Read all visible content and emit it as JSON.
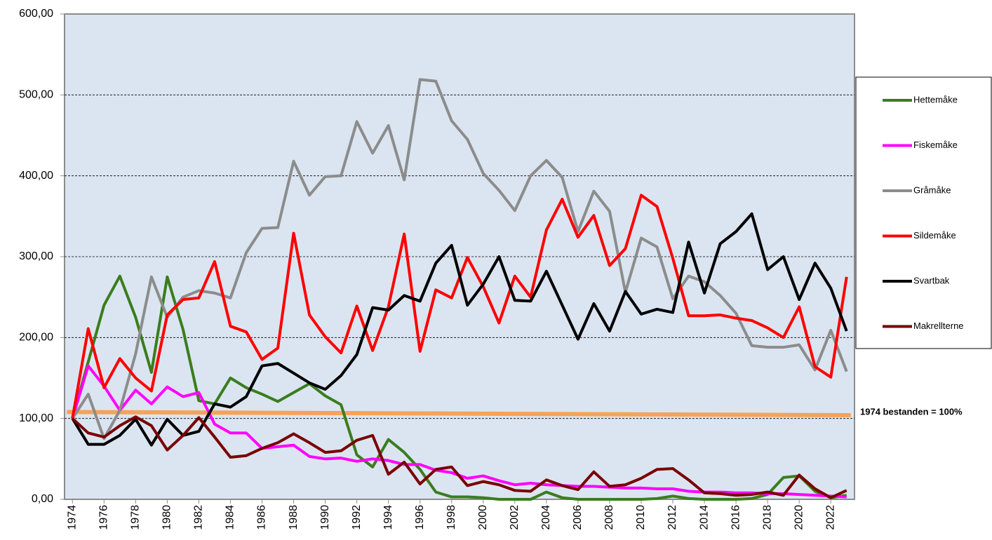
{
  "chart_data": {
    "type": "line",
    "x": [
      1974,
      1975,
      1976,
      1977,
      1978,
      1979,
      1980,
      1981,
      1982,
      1983,
      1984,
      1985,
      1986,
      1987,
      1988,
      1989,
      1990,
      1991,
      1992,
      1993,
      1994,
      1995,
      1996,
      1997,
      1998,
      1999,
      2000,
      2001,
      2002,
      2003,
      2004,
      2005,
      2006,
      2007,
      2008,
      2009,
      2010,
      2011,
      2012,
      2013,
      2014,
      2015,
      2016,
      2017,
      2018,
      2019,
      2020,
      2021,
      2022,
      2023
    ],
    "xlim": [
      1973.5,
      2023.5
    ],
    "xticks": [
      1974,
      1976,
      1978,
      1980,
      1982,
      1984,
      1986,
      1988,
      1990,
      1992,
      1994,
      1996,
      1998,
      2000,
      2002,
      2004,
      2006,
      2008,
      2010,
      2012,
      2014,
      2016,
      2018,
      2020,
      2022
    ],
    "ylim": [
      0,
      600
    ],
    "yticks": [
      {
        "value": 0,
        "label": "0,00"
      },
      {
        "value": 100,
        "label": "100,00"
      },
      {
        "value": 200,
        "label": "200,00"
      },
      {
        "value": 300,
        "label": "300,00"
      },
      {
        "value": 400,
        "label": "400,00"
      },
      {
        "value": 500,
        "label": "500,00"
      },
      {
        "value": 600,
        "label": "600,00"
      }
    ],
    "grid": true,
    "legend": "right",
    "series": [
      {
        "name": "Hettemåke",
        "color": "#3a7d1e",
        "values": [
          100,
          170,
          240,
          276,
          225,
          157,
          275,
          210,
          122,
          118,
          150,
          138,
          130,
          121,
          132,
          143,
          128,
          117,
          55,
          40,
          74,
          58,
          37,
          9,
          3,
          3,
          2,
          0,
          0,
          0,
          9,
          2,
          0,
          0,
          0,
          0,
          0,
          1,
          4,
          1,
          0,
          0,
          0,
          1,
          6,
          27,
          29,
          10,
          2,
          5
        ]
      },
      {
        "name": "Fiskemåke",
        "color": "#ff00ff",
        "values": [
          100,
          165,
          140,
          110,
          135,
          118,
          139,
          127,
          132,
          93,
          82,
          82,
          63,
          65,
          67,
          53,
          50,
          51,
          47,
          50,
          48,
          43,
          43,
          36,
          33,
          26,
          29,
          23,
          18,
          20,
          18,
          17,
          16,
          16,
          15,
          14,
          14,
          13,
          13,
          10,
          9,
          9,
          8,
          8,
          7,
          7,
          6,
          5,
          4,
          3
        ]
      },
      {
        "name": "Gråmåke",
        "color": "#8c8c8c",
        "values": [
          100,
          130,
          75,
          110,
          180,
          275,
          225,
          250,
          258,
          255,
          249,
          305,
          335,
          336,
          418,
          376,
          399,
          400,
          467,
          428,
          462,
          395,
          519,
          517,
          468,
          445,
          403,
          382,
          357,
          400,
          419,
          398,
          331,
          381,
          356,
          256,
          323,
          312,
          248,
          276,
          269,
          252,
          230,
          190,
          188,
          188,
          191,
          160,
          209,
          158
        ]
      },
      {
        "name": "Sildemåke",
        "color": "#ff0000",
        "values": [
          100,
          211,
          138,
          174,
          150,
          134,
          228,
          247,
          249,
          294,
          214,
          207,
          173,
          187,
          329,
          228,
          201,
          181,
          239,
          184,
          238,
          328,
          183,
          259,
          249,
          299,
          263,
          218,
          276,
          250,
          333,
          371,
          324,
          351,
          289,
          310,
          376,
          362,
          298,
          227,
          227,
          228,
          224,
          221,
          212,
          200,
          238,
          164,
          151,
          275
        ]
      },
      {
        "name": "Svartbak",
        "color": "#000000",
        "values": [
          100,
          68,
          68,
          79,
          99,
          67,
          99,
          79,
          84,
          118,
          114,
          127,
          165,
          168,
          156,
          144,
          136,
          153,
          179,
          237,
          234,
          252,
          245,
          292,
          314,
          240,
          266,
          300,
          246,
          245,
          282,
          240,
          198,
          242,
          208,
          257,
          229,
          235,
          231,
          318,
          255,
          316,
          331,
          353,
          284,
          300,
          247,
          292,
          261,
          208
        ]
      },
      {
        "name": "Makrellterne",
        "color": "#7a0000",
        "values": [
          100,
          82,
          77,
          91,
          102,
          91,
          61,
          79,
          101,
          77,
          52,
          54,
          63,
          70,
          81,
          70,
          58,
          60,
          73,
          79,
          31,
          46,
          19,
          37,
          40,
          17,
          22,
          18,
          11,
          10,
          24,
          17,
          12,
          34,
          16,
          18,
          26,
          37,
          38,
          24,
          8,
          7,
          5,
          6,
          9,
          5,
          30,
          13,
          2,
          11
        ]
      }
    ],
    "reference": {
      "label": "1974 bestanden = 100%",
      "start": 108,
      "end": 104,
      "color": "#f5a35a"
    }
  }
}
